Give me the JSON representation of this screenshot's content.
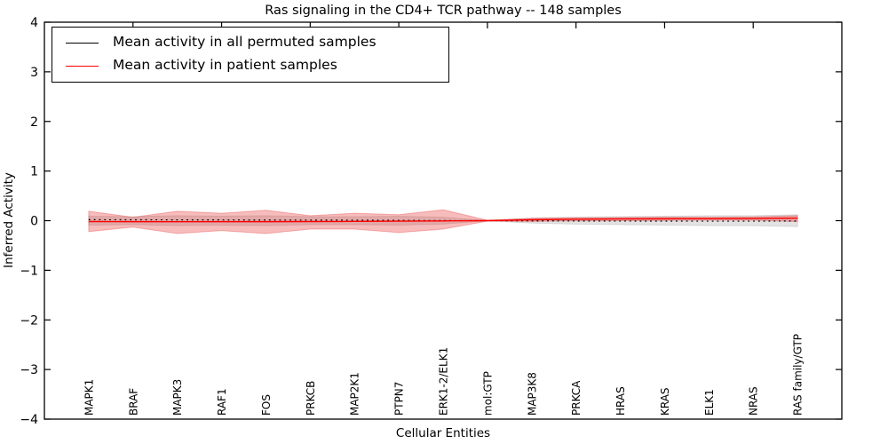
{
  "title": "Ras signaling in the CD4+ TCR pathway -- 148 samples",
  "axes": {
    "xlabel": "Cellular Entities",
    "ylabel": "Inferred Activity",
    "ytick_labels": [
      "4",
      "3",
      "2",
      "1",
      "0",
      "−1",
      "−2",
      "−3",
      "−4"
    ]
  },
  "legend": {
    "items": [
      {
        "label": "Mean activity in all permuted samples",
        "color": "#000000"
      },
      {
        "label": "Mean activity in patient samples",
        "color": "#ff0000"
      }
    ]
  },
  "chart_data": {
    "type": "line",
    "title": "Ras signaling in the CD4+ TCR pathway -- 148 samples",
    "xlabel": "Cellular Entities",
    "ylabel": "Inferred Activity",
    "ylim": [
      -4,
      4
    ],
    "yticks": [
      4,
      3,
      2,
      1,
      0,
      -1,
      -2,
      -3,
      -4
    ],
    "grid": false,
    "legend_position": "upper left",
    "n_samples": 148,
    "categories": [
      "MAPK1",
      "BRAF",
      "MAPK3",
      "RAF1",
      "FOS",
      "PRKCB",
      "MAP2K1",
      "PTPN7",
      "ERK1-2/ELK1",
      "mol:GTP",
      "MAP3K8",
      "PRKCA",
      "HRAS",
      "KRAS",
      "ELK1",
      "NRAS",
      "RAS family/GTP"
    ],
    "series": [
      {
        "name": "Mean activity in all permuted samples",
        "color": "#000000",
        "style": "dotted",
        "values": [
          0.02,
          0.018,
          0.016,
          0.015,
          0.013,
          0.012,
          0.01,
          0.006,
          0.002,
          0.0,
          -0.004,
          -0.006,
          -0.008,
          -0.009,
          -0.01,
          -0.01,
          -0.006
        ]
      },
      {
        "name": "Mean activity in patient samples",
        "color": "#ff0000",
        "style": "solid",
        "values": [
          -0.018,
          -0.02,
          -0.022,
          -0.02,
          -0.02,
          -0.018,
          -0.015,
          -0.01,
          -0.005,
          0.0,
          0.018,
          0.028,
          0.034,
          0.038,
          0.04,
          0.044,
          0.05
        ]
      }
    ],
    "bands": [
      {
        "name": "permuted-samples-std-band",
        "color": "rgba(128,128,128,0.22)",
        "upper": [
          0.09,
          0.08,
          0.1,
          0.09,
          0.1,
          0.08,
          0.08,
          0.09,
          0.07,
          0.005,
          0.05,
          0.07,
          0.08,
          0.09,
          0.1,
          0.1,
          0.12
        ],
        "lower": [
          -0.09,
          -0.08,
          -0.1,
          -0.09,
          -0.1,
          -0.08,
          -0.08,
          -0.09,
          -0.07,
          -0.005,
          -0.05,
          -0.07,
          -0.08,
          -0.09,
          -0.1,
          -0.1,
          -0.12
        ]
      },
      {
        "name": "patient-samples-std-band",
        "color": "rgba(228,32,32,0.30)",
        "upper": [
          0.19,
          0.07,
          0.19,
          0.15,
          0.21,
          0.1,
          0.15,
          0.12,
          0.22,
          0.01,
          0.05,
          0.06,
          0.065,
          0.07,
          0.07,
          0.075,
          0.1
        ],
        "lower": [
          -0.22,
          -0.13,
          -0.26,
          -0.2,
          -0.26,
          -0.17,
          -0.17,
          -0.24,
          -0.17,
          -0.01,
          -0.015,
          -0.005,
          0.0,
          0.005,
          0.01,
          0.012,
          -0.02
        ]
      }
    ]
  }
}
